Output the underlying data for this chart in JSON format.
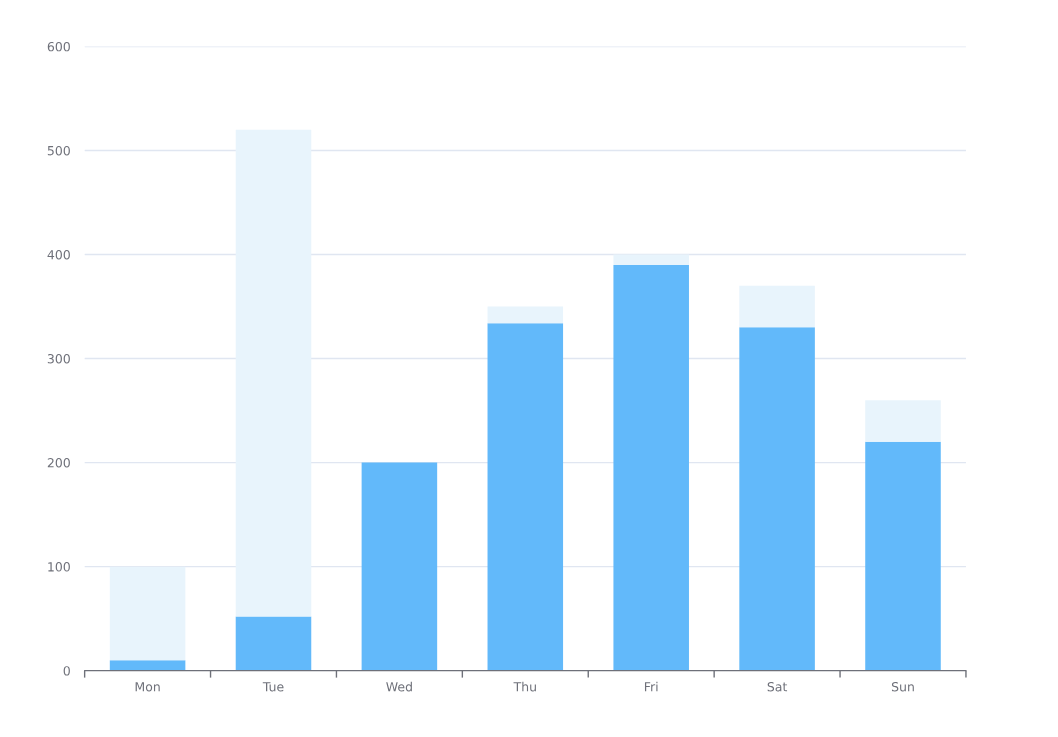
{
  "chart_data": {
    "type": "bar",
    "categories": [
      "Mon",
      "Tue",
      "Wed",
      "Thu",
      "Fri",
      "Sat",
      "Sun"
    ],
    "stacked": true,
    "series": [
      {
        "color": "#62b9fa",
        "values": [
          10,
          52,
          200,
          334,
          390,
          330,
          220
        ]
      },
      {
        "color": "#e8f4fc",
        "values": [
          90,
          468,
          0,
          16,
          10,
          40,
          40
        ]
      }
    ],
    "ylim": [
      0,
      600
    ],
    "yticks": [
      0,
      100,
      200,
      300,
      400,
      500,
      600
    ],
    "grid": "y"
  }
}
